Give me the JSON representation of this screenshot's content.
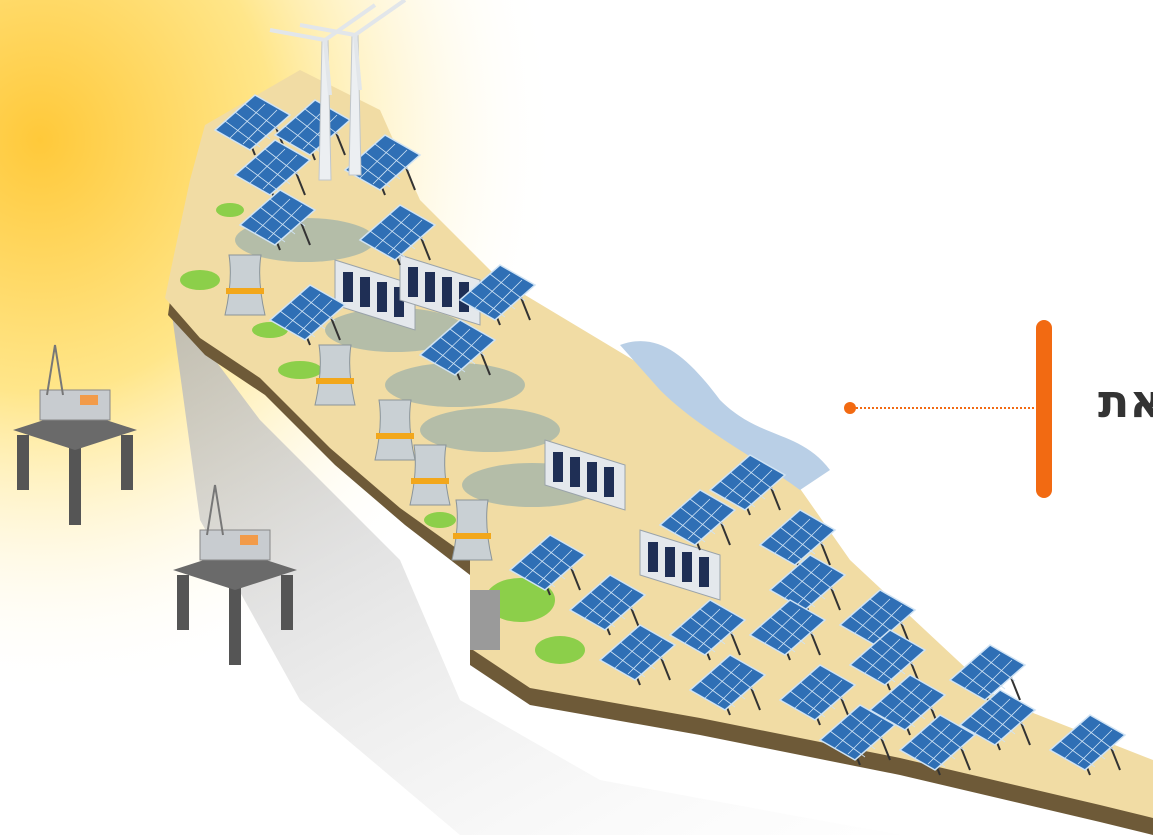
{
  "label": {
    "text": "את"
  }
}
